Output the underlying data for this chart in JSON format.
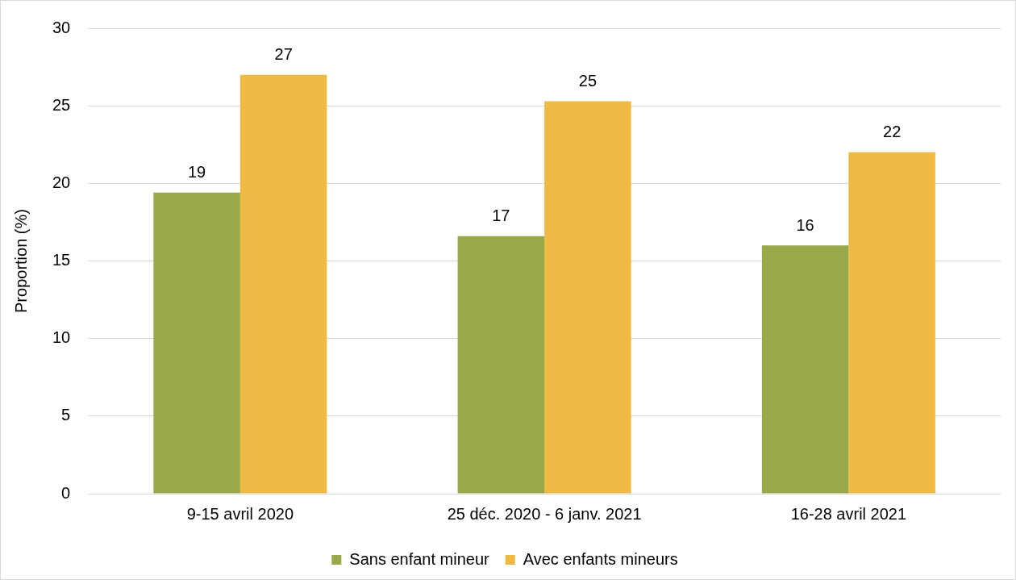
{
  "chart_data": {
    "type": "bar",
    "ylabel": "Proportion (%)",
    "categories": [
      "9-15 avril 2020",
      "25 déc. 2020 - 6 janv. 2021",
      "16-28 avril 2021"
    ],
    "series": [
      {
        "name": "Sans enfant mineur",
        "color": "#97a94a",
        "values": [
          19.4,
          16.6,
          16.0
        ],
        "value_labels": [
          "19",
          "17",
          "16"
        ]
      },
      {
        "name": "Avec enfants mineurs",
        "color": "#efb943",
        "values": [
          27.0,
          25.3,
          22.0
        ],
        "value_labels": [
          "27",
          "25",
          "22"
        ]
      }
    ],
    "ylim": [
      0,
      30
    ],
    "yticks": [
      0,
      5,
      10,
      15,
      20,
      25,
      30
    ],
    "grid": "y",
    "legend": "bottom"
  }
}
